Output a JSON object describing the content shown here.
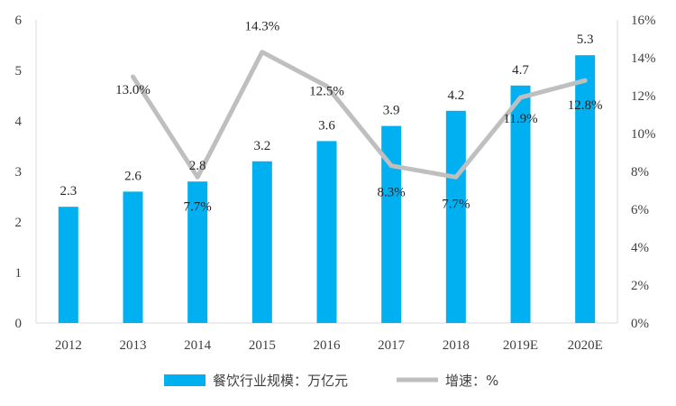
{
  "chart_data": {
    "type": "bar+line",
    "categories": [
      "2012",
      "2013",
      "2014",
      "2015",
      "2016",
      "2017",
      "2018",
      "2019E",
      "2020E"
    ],
    "series": [
      {
        "name": "餐饮行业规模：万亿元",
        "type": "bar",
        "axis": "left",
        "values": [
          2.3,
          2.6,
          2.8,
          3.2,
          3.6,
          3.9,
          4.2,
          4.7,
          5.3
        ],
        "labels": [
          "2.3",
          "2.6",
          "2.8",
          "3.2",
          "3.6",
          "3.9",
          "4.2",
          "4.7",
          "5.3"
        ],
        "color": "#00B0F0"
      },
      {
        "name": "增速：%",
        "type": "line",
        "axis": "right",
        "values": [
          null,
          13.0,
          7.7,
          14.3,
          12.5,
          8.3,
          7.7,
          11.9,
          12.8
        ],
        "labels": [
          "",
          "13.0%",
          "7.7%",
          "14.3%",
          "12.5%",
          "8.3%",
          "7.7%",
          "11.9%",
          "12.8%"
        ],
        "color": "#BFBFBF"
      }
    ],
    "y_left": {
      "min": 0,
      "max": 6,
      "ticks": [
        "0",
        "1",
        "2",
        "3",
        "4",
        "5",
        "6"
      ]
    },
    "y_right": {
      "min": 0,
      "max": 16,
      "ticks": [
        "0%",
        "2%",
        "4%",
        "6%",
        "8%",
        "10%",
        "12%",
        "14%",
        "16%"
      ]
    },
    "grid": false,
    "legend_position": "bottom"
  }
}
